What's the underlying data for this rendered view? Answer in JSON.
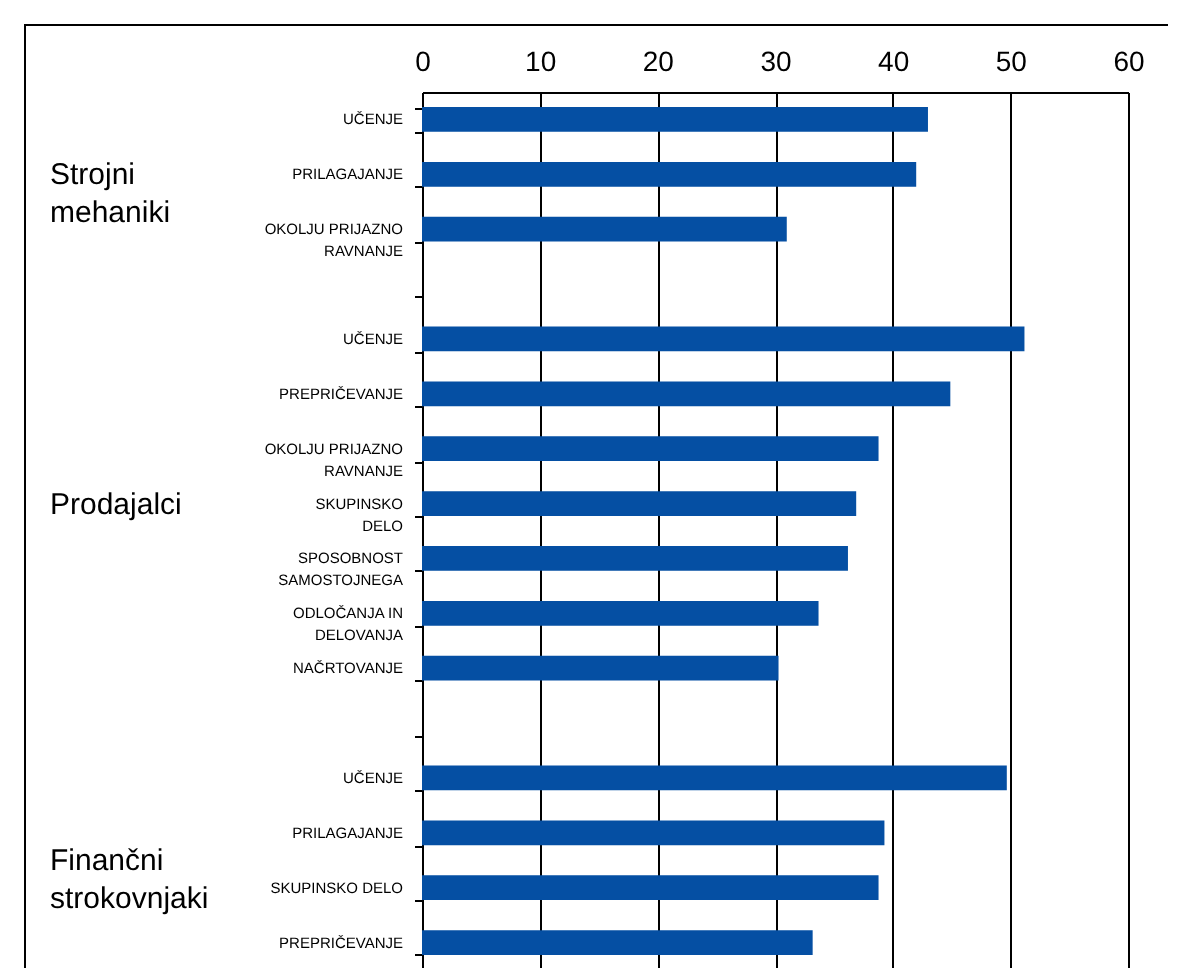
{
  "chart_data": {
    "type": "bar",
    "orientation": "horizontal",
    "categories": [
      "UČENJE",
      "PRILAGAJANJE",
      "OKOLJU PRIJAZNO\nRAVNANJE",
      null,
      "UČENJE",
      "PREPRIČEVANJE",
      "OKOLJU PRIJAZNO\nRAVNANJE",
      "SKUPINSKO\nDELO",
      "SPOSOBNOST\nSAMOSTOJNEGA",
      "ODLOČANJA IN\nDELOVANJA",
      "NAČRTOVANJE",
      null,
      "UČENJE",
      "PRILAGAJANJE",
      "SKUPINSKO DELO",
      "PREPRIČEVANJE"
    ],
    "values": [
      43,
      42,
      31,
      null,
      51.2,
      44.9,
      38.8,
      36.9,
      36.2,
      33.7,
      30.3,
      null,
      49.7,
      39.3,
      38.8,
      33.2
    ],
    "color": "#054fa3",
    "xlim": [
      0,
      60
    ],
    "xticks": [
      0,
      10,
      20,
      30,
      40,
      50,
      60
    ],
    "grid": "x",
    "annotations": [
      "Strojni mehaniki",
      "Prodajalci",
      "Finančni strokovnjaki"
    ]
  }
}
